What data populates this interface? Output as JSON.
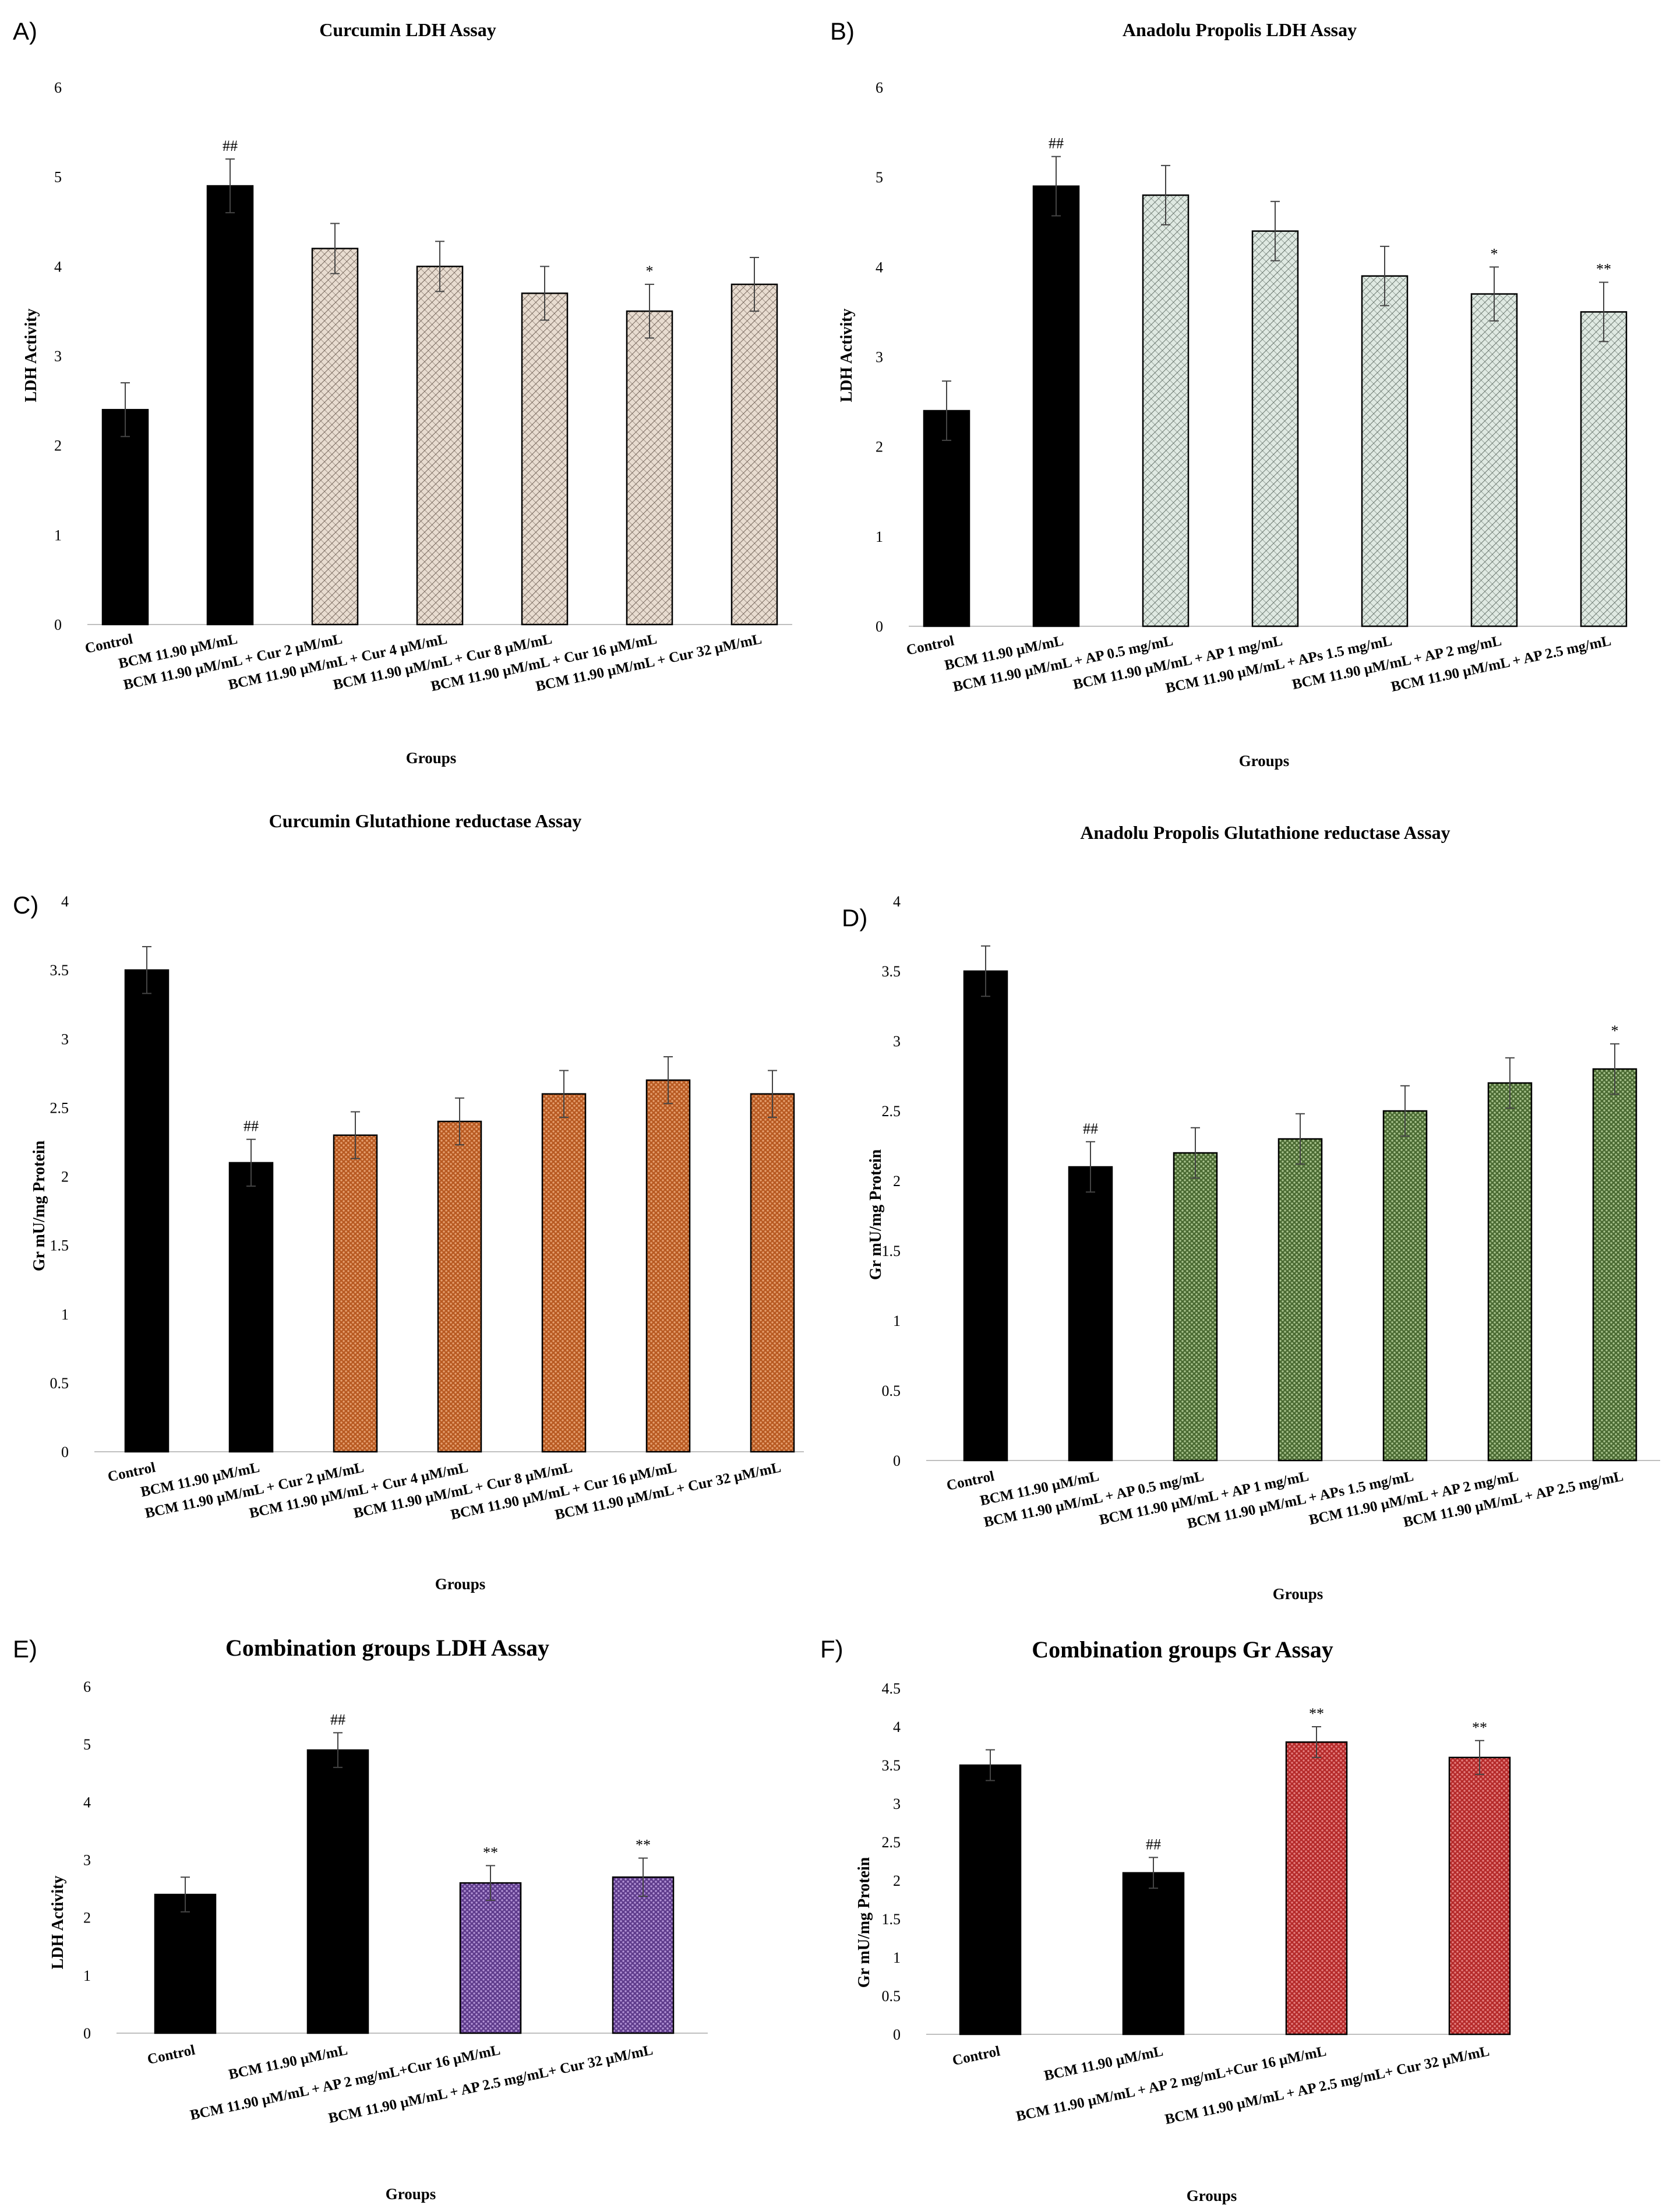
{
  "chart_data": [
    {
      "panel": "A)",
      "type": "bar",
      "title": "Curcumin LDH Assay",
      "xlabel": "Groups",
      "ylabel": "LDH Activity",
      "ylim": [
        0,
        6
      ],
      "yticks": [
        "0",
        "1",
        "2",
        "3",
        "4",
        "5",
        "6"
      ],
      "categories": [
        "Control",
        "BCM 11.90 µM/mL",
        "BCM 11.90 µM/mL + Cur 2 µM/mL",
        "BCM 11.90 µM/mL + Cur 4 µM/mL",
        "BCM 11.90 µM/mL + Cur 8 µM/mL",
        "BCM 11.90 µM/mL + Cur 16 µM/mL",
        "BCM 11.90 µM/mL + Cur 32 µM/mL"
      ],
      "values": [
        2.4,
        4.9,
        4.2,
        4.0,
        3.7,
        3.5,
        3.8
      ],
      "errors": [
        0.3,
        0.3,
        0.28,
        0.28,
        0.3,
        0.3,
        0.3
      ],
      "annotations": [
        "",
        "##",
        "",
        "",
        "",
        "*",
        ""
      ],
      "fills": [
        "solid",
        "solid",
        "hatch",
        "hatch",
        "hatch",
        "hatch",
        "hatch"
      ],
      "treatment_color": "#e8dcd0",
      "treatment_line_color": "#5a4a40"
    },
    {
      "panel": "B)",
      "type": "bar",
      "title": "Anadolu Propolis LDH Assay",
      "xlabel": "Groups",
      "ylabel": "LDH Activity",
      "ylim": [
        0,
        6
      ],
      "yticks": [
        "0",
        "1",
        "2",
        "3",
        "4",
        "5",
        "6"
      ],
      "categories": [
        "Control",
        "BCM 11.90 µM/mL",
        "BCM 11.90 µM/mL + AP 0.5 mg/mL",
        "BCM 11.90 µM/mL + AP 1 mg/mL",
        "BCM 11.90 µM/mL + APs 1.5 mg/mL",
        "BCM 11.90 µM/mL + AP 2 mg/mL",
        "BCM 11.90 µM/mL + AP 2.5 mg/mL"
      ],
      "values": [
        2.4,
        4.9,
        4.8,
        4.4,
        3.9,
        3.7,
        3.5
      ],
      "errors": [
        0.33,
        0.33,
        0.33,
        0.33,
        0.33,
        0.3,
        0.33
      ],
      "annotations": [
        "",
        "##",
        "",
        "",
        "",
        "*",
        "**"
      ],
      "fills": [
        "solid",
        "solid",
        "hatch",
        "hatch",
        "hatch",
        "hatch",
        "hatch"
      ],
      "treatment_color": "#dfe9e2",
      "treatment_line_color": "#4d5a52"
    },
    {
      "panel": "C)",
      "type": "bar",
      "title": "Curcumin Glutathione reductase Assay",
      "xlabel": "Groups",
      "ylabel": "Gr mU/mg Protein",
      "ylim": [
        0,
        4
      ],
      "yticks": [
        "0",
        "0.5",
        "1",
        "1.5",
        "2",
        "2.5",
        "3",
        "3.5",
        "4"
      ],
      "categories": [
        "Control",
        "BCM 11.90 µM/mL",
        "BCM 11.90 µM/mL + Cur 2 µM/mL",
        "BCM 11.90 µM/mL + Cur 4 µM/mL",
        "BCM 11.90 µM/mL + Cur 8 µM/mL",
        "BCM 11.90 µM/mL + Cur 16 µM/mL",
        "BCM 11.90 µM/mL + Cur 32 µM/mL"
      ],
      "values": [
        3.5,
        2.1,
        2.3,
        2.4,
        2.6,
        2.7,
        2.6
      ],
      "errors": [
        0.17,
        0.17,
        0.17,
        0.17,
        0.17,
        0.17,
        0.17
      ],
      "annotations": [
        "",
        "##",
        "",
        "",
        "",
        "",
        ""
      ],
      "fills": [
        "solid",
        "solid",
        "dots",
        "dots",
        "dots",
        "dots",
        "dots"
      ],
      "treatment_color": "#e6a070",
      "treatment_line_color": "#b85a22"
    },
    {
      "panel": "D)",
      "type": "bar",
      "title": "Anadolu Propolis Glutathione reductase Assay",
      "xlabel": "Groups",
      "ylabel": "Gr mU/mg Protein",
      "ylim": [
        0,
        4
      ],
      "yticks": [
        "0",
        "0.5",
        "1",
        "1.5",
        "2",
        "2.5",
        "3",
        "3.5",
        "4"
      ],
      "categories": [
        "Control",
        "BCM 11.90 µM/mL",
        "BCM 11.90 µM/mL + AP 0.5 mg/mL",
        "BCM 11.90 µM/mL + AP 1 mg/mL",
        "BCM 11.90 µM/mL + APs 1.5 mg/mL",
        "BCM 11.90 µM/mL + AP 2 mg/mL",
        "BCM 11.90 µM/mL + AP 2.5 mg/mL"
      ],
      "values": [
        3.5,
        2.1,
        2.2,
        2.3,
        2.5,
        2.7,
        2.8
      ],
      "errors": [
        0.18,
        0.18,
        0.18,
        0.18,
        0.18,
        0.18,
        0.18
      ],
      "annotations": [
        "",
        "##",
        "",
        "",
        "",
        "",
        "*"
      ],
      "fills": [
        "solid",
        "solid",
        "dots",
        "dots",
        "dots",
        "dots",
        "dots"
      ],
      "treatment_color": "#a9c48e",
      "treatment_line_color": "#4b6b33"
    },
    {
      "panel": "E)",
      "type": "bar",
      "title": "Combination groups LDH Assay",
      "xlabel": "Groups",
      "ylabel": "LDH Activity",
      "ylim": [
        0,
        6
      ],
      "yticks": [
        "0",
        "1",
        "2",
        "3",
        "4",
        "5",
        "6"
      ],
      "categories": [
        "Control",
        "BCM 11.90 µM/mL",
        "BCM 11.90 µM/mL + AP 2 mg/mL+Cur 16 µM/mL",
        "BCM 11.90 µM/mL + AP 2.5 mg/mL+ Cur 32 µM/mL"
      ],
      "values": [
        2.4,
        4.9,
        2.6,
        2.7
      ],
      "errors": [
        0.3,
        0.3,
        0.3,
        0.33
      ],
      "annotations": [
        "",
        "##",
        "**",
        "**"
      ],
      "fills": [
        "solid",
        "solid",
        "dots",
        "dots"
      ],
      "treatment_color": "#b394d6",
      "treatment_line_color": "#5f3c8c"
    },
    {
      "panel": "F)",
      "type": "bar",
      "title": "Combination groups Gr Assay",
      "xlabel": "Groups",
      "ylabel": "Gr mU/mg Protein",
      "ylim": [
        0,
        4.5
      ],
      "yticks": [
        "0",
        "0.5",
        "1",
        "1.5",
        "2",
        "2.5",
        "3",
        "3.5",
        "4",
        "4.5"
      ],
      "categories": [
        "Control",
        "BCM 11.90 µM/mL",
        "BCM 11.90 µM/mL + AP 2 mg/mL+Cur 16 µM/mL",
        "BCM 11.90 µM/mL + AP 2.5 mg/mL+ Cur 32 µM/mL"
      ],
      "values": [
        3.5,
        2.1,
        3.8,
        3.6
      ],
      "errors": [
        0.2,
        0.2,
        0.2,
        0.22
      ],
      "annotations": [
        "",
        "##",
        "**",
        "**"
      ],
      "fills": [
        "solid",
        "solid",
        "dots",
        "dots"
      ],
      "treatment_color": "#e58080",
      "treatment_line_color": "#b52a2a"
    }
  ]
}
